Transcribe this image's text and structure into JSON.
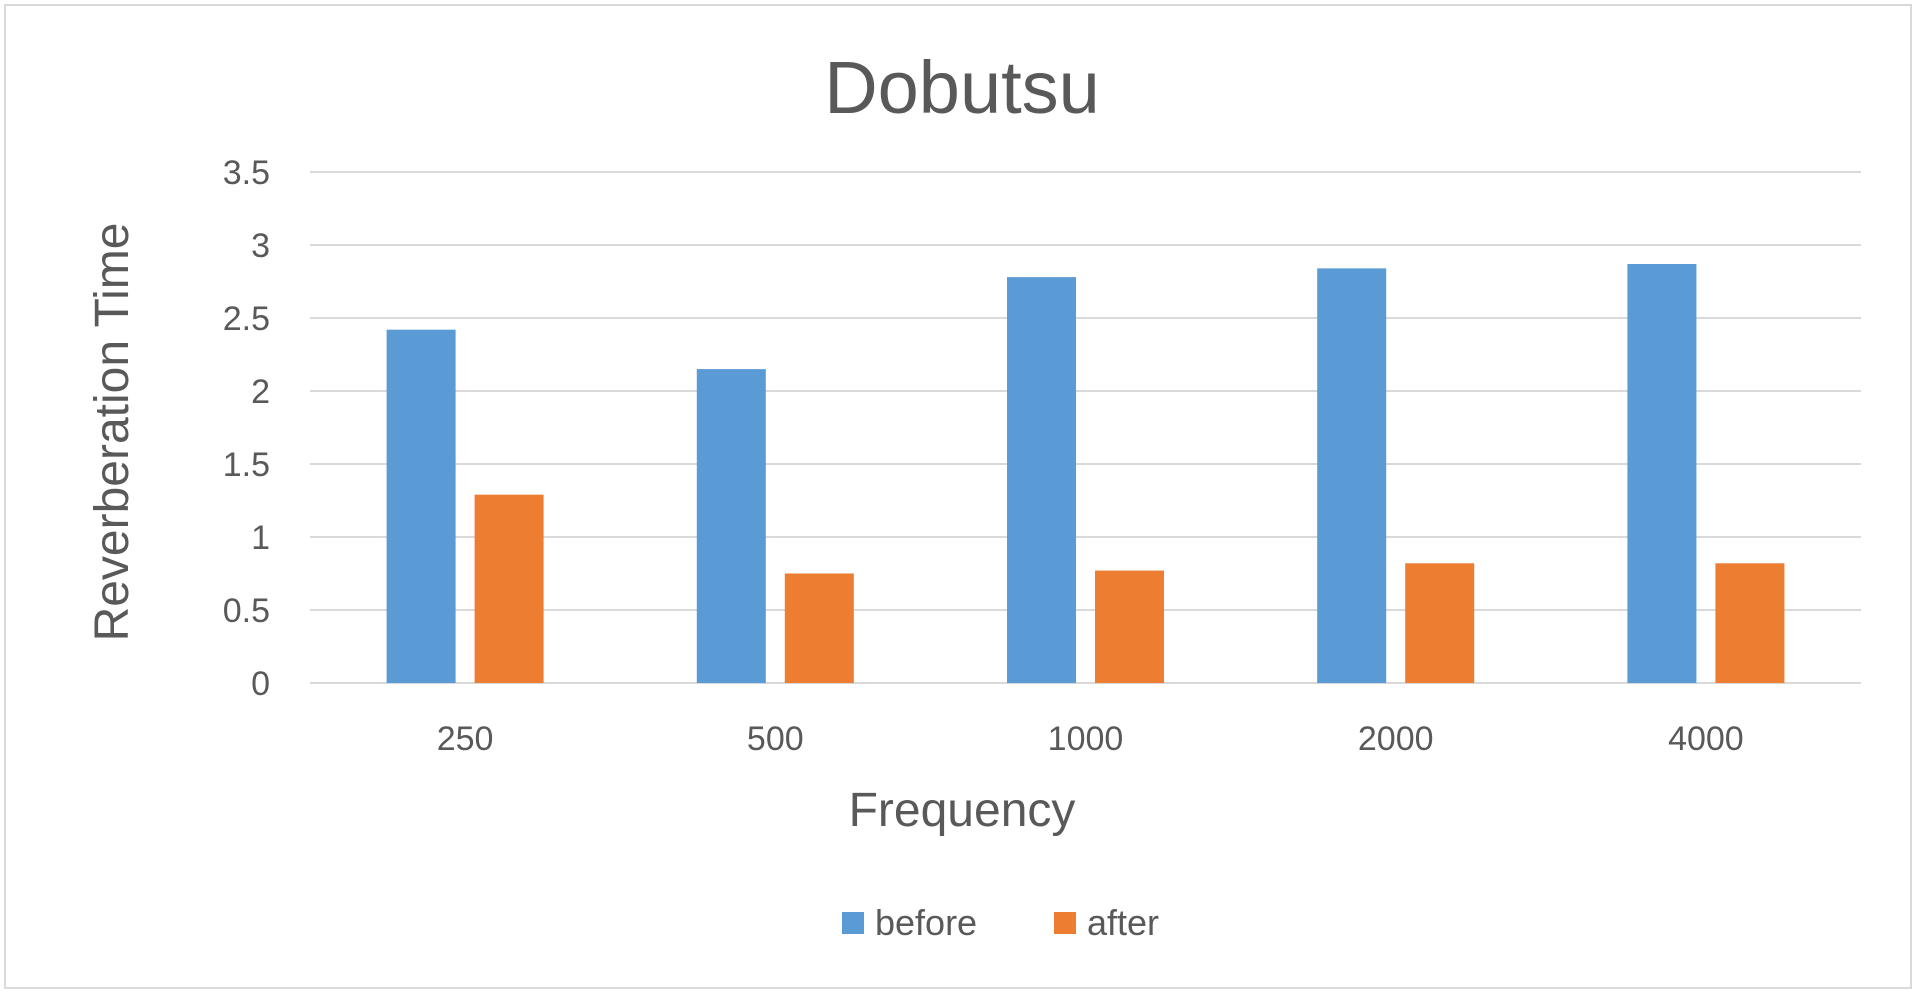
{
  "chart_data": {
    "type": "bar",
    "title": "Dobutsu",
    "xlabel": "Frequency",
    "ylabel": "Reverberation Time",
    "categories": [
      "250",
      "500",
      "1000",
      "2000",
      "4000"
    ],
    "series": [
      {
        "name": "before",
        "color": "#5b9bd5",
        "values": [
          2.42,
          2.15,
          2.78,
          2.84,
          2.87
        ]
      },
      {
        "name": "after",
        "color": "#ed7d31",
        "values": [
          1.29,
          0.75,
          0.77,
          0.82,
          0.82
        ]
      }
    ],
    "ylim": [
      0,
      3.5
    ],
    "yticks": [
      "0",
      "0.5",
      "1",
      "1.5",
      "2",
      "2.5",
      "3",
      "3.5"
    ],
    "grid": true,
    "legend_position": "bottom"
  }
}
